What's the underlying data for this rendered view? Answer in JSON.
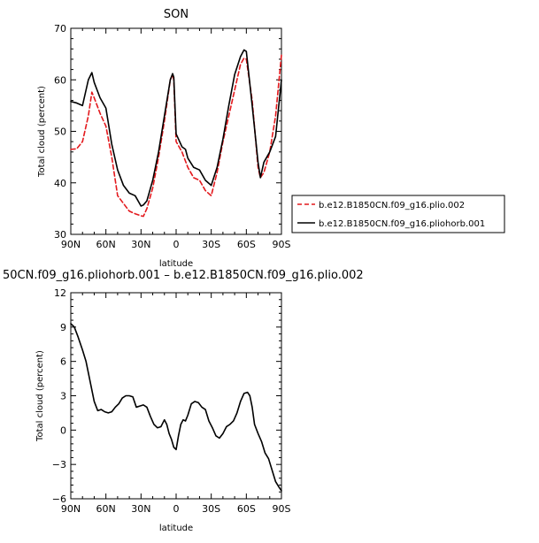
{
  "chart_data": [
    {
      "type": "line",
      "title": "SON",
      "xlabel": "latitude",
      "ylabel": "Total cloud (percent)",
      "xlim": [
        90,
        -90
      ],
      "ylim": [
        30,
        70
      ],
      "x_ticks": [
        {
          "value": 90,
          "label": "90N"
        },
        {
          "value": 60,
          "label": "60N"
        },
        {
          "value": 30,
          "label": "30N"
        },
        {
          "value": 0,
          "label": "0"
        },
        {
          "value": -30,
          "label": "30S"
        },
        {
          "value": -60,
          "label": "60S"
        },
        {
          "value": -90,
          "label": "90S"
        }
      ],
      "y_ticks": [
        {
          "value": 30,
          "label": "30"
        },
        {
          "value": 40,
          "label": "40"
        },
        {
          "value": 50,
          "label": "50"
        },
        {
          "value": 60,
          "label": "60"
        },
        {
          "value": 70,
          "label": "70"
        }
      ],
      "legend_position": "right",
      "series": [
        {
          "name": "b.e12.B1850CN.f09_g16.plio.002",
          "color": "#e3181c",
          "dash": "dashed",
          "x": [
            90,
            85,
            80,
            75,
            72,
            70,
            65,
            60,
            55,
            50,
            45,
            40,
            35,
            30,
            28,
            25,
            20,
            15,
            10,
            5,
            3,
            2,
            0,
            -5,
            -10,
            -15,
            -20,
            -25,
            -30,
            -35,
            -40,
            -45,
            -50,
            -55,
            -58,
            -60,
            -65,
            -70,
            -72,
            -75,
            -80,
            -85,
            -90
          ],
          "y": [
            46.5,
            46.6,
            48,
            53,
            57.6,
            56.5,
            53.5,
            51,
            45,
            37.5,
            36,
            34.5,
            34,
            33.6,
            33.5,
            35,
            39,
            45,
            52,
            60,
            61,
            60,
            48,
            46,
            43,
            41,
            40.5,
            38.5,
            37.5,
            42,
            48,
            53,
            58,
            63,
            64.2,
            64,
            56,
            43,
            41,
            42,
            46,
            53,
            64.8
          ]
        },
        {
          "name": "b.e12.B1850CN.f09_g16.pliohorb.001",
          "color": "#000000",
          "dash": "solid",
          "x": [
            90,
            85,
            80,
            75,
            72,
            70,
            65,
            60,
            55,
            50,
            45,
            40,
            35,
            30,
            28,
            25,
            20,
            15,
            10,
            5,
            3,
            2,
            0,
            -5,
            -8,
            -10,
            -15,
            -20,
            -25,
            -30,
            -35,
            -40,
            -45,
            -50,
            -55,
            -58,
            -60,
            -65,
            -70,
            -72,
            -75,
            -80,
            -85,
            -90
          ],
          "y": [
            55.8,
            55.5,
            55,
            60,
            61.4,
            59.5,
            56.5,
            54.5,
            47.5,
            42.5,
            39.5,
            38,
            37.5,
            35.5,
            35.7,
            36.5,
            40.5,
            46,
            53,
            60,
            61.2,
            60.5,
            49.5,
            47,
            46.5,
            44.8,
            43,
            42.5,
            40.5,
            39.5,
            43,
            48.5,
            55,
            61,
            64.5,
            65.8,
            65.5,
            55,
            44,
            41,
            44,
            46,
            49,
            60
          ]
        }
      ]
    },
    {
      "type": "line",
      "title": "50CN.f09_g16.pliohorb.001 – b.e12.B1850CN.f09_g16.plio.002",
      "xlabel": "latitude",
      "ylabel": "Total cloud (percent)",
      "xlim": [
        90,
        -90
      ],
      "ylim": [
        -6,
        12
      ],
      "x_ticks": [
        {
          "value": 90,
          "label": "90N"
        },
        {
          "value": 60,
          "label": "60N"
        },
        {
          "value": 30,
          "label": "30N"
        },
        {
          "value": 0,
          "label": "0"
        },
        {
          "value": -30,
          "label": "30S"
        },
        {
          "value": -60,
          "label": "60S"
        },
        {
          "value": -90,
          "label": "90S"
        }
      ],
      "y_ticks": [
        {
          "value": -6,
          "label": "−6"
        },
        {
          "value": -3,
          "label": "−3"
        },
        {
          "value": 0,
          "label": "0"
        },
        {
          "value": 3,
          "label": "3"
        },
        {
          "value": 6,
          "label": "6"
        },
        {
          "value": 9,
          "label": "9"
        },
        {
          "value": 12,
          "label": "12"
        }
      ],
      "series": [
        {
          "color": "#000000",
          "dash": "solid",
          "x": [
            90,
            87,
            84,
            80,
            77,
            74,
            70,
            67,
            64,
            61,
            58,
            55,
            52,
            49,
            46,
            43,
            40,
            37,
            34,
            31,
            28,
            25,
            22,
            19,
            16,
            13,
            10,
            8,
            6,
            4,
            2,
            0,
            -2,
            -4,
            -6,
            -8,
            -10,
            -13,
            -16,
            -19,
            -22,
            -25,
            -28,
            -31,
            -34,
            -37,
            -40,
            -43,
            -46,
            -49,
            -52,
            -55,
            -58,
            -61,
            -63,
            -65,
            -67,
            -70,
            -73,
            -76,
            -79,
            -82,
            -85,
            -88,
            -90
          ],
          "y": [
            9.3,
            9.0,
            8.2,
            7.0,
            6.0,
            4.5,
            2.5,
            1.7,
            1.8,
            1.6,
            1.5,
            1.6,
            2.0,
            2.3,
            2.8,
            3.0,
            3.0,
            2.9,
            2.0,
            2.1,
            2.2,
            2.0,
            1.2,
            0.5,
            0.2,
            0.3,
            0.9,
            0.5,
            -0.3,
            -0.8,
            -1.5,
            -1.7,
            -0.5,
            0.5,
            0.9,
            0.8,
            1.3,
            2.3,
            2.5,
            2.4,
            2.0,
            1.8,
            0.8,
            0.2,
            -0.5,
            -0.7,
            -0.3,
            0.3,
            0.5,
            0.8,
            1.5,
            2.5,
            3.2,
            3.3,
            3.0,
            2.0,
            0.5,
            -0.3,
            -1.0,
            -2.0,
            -2.5,
            -3.5,
            -4.5,
            -5.0,
            -5.3
          ]
        }
      ]
    }
  ]
}
